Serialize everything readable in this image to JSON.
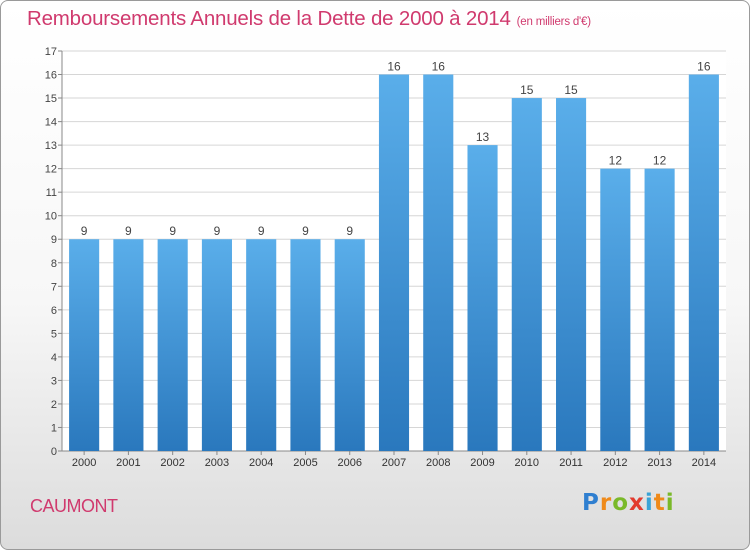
{
  "header": {
    "title": "Remboursements Annuels de la Dette de 2000 à 2014",
    "unit": "(en milliers d'€)"
  },
  "footer": {
    "city": "CAUMONT",
    "logo_letters": [
      "P",
      "r",
      "o",
      "x",
      "i",
      "t",
      "i"
    ]
  },
  "colors": {
    "accent": "#d03a6e",
    "bar_top": "#5aaeea",
    "bar_bottom": "#2a78bd",
    "grid": "#d6d6d6"
  },
  "chart_data": {
    "type": "bar",
    "categories": [
      "2000",
      "2001",
      "2002",
      "2003",
      "2004",
      "2005",
      "2006",
      "2007",
      "2008",
      "2009",
      "2010",
      "2011",
      "2012",
      "2013",
      "2014"
    ],
    "values": [
      9,
      9,
      9,
      9,
      9,
      9,
      9,
      16,
      16,
      13,
      15,
      15,
      12,
      12,
      16
    ],
    "ylim": [
      0,
      17
    ],
    "yticks": [
      0,
      1,
      2,
      3,
      4,
      5,
      6,
      7,
      8,
      9,
      10,
      11,
      12,
      13,
      14,
      15,
      16,
      17
    ],
    "grid": true,
    "data_labels": true
  }
}
